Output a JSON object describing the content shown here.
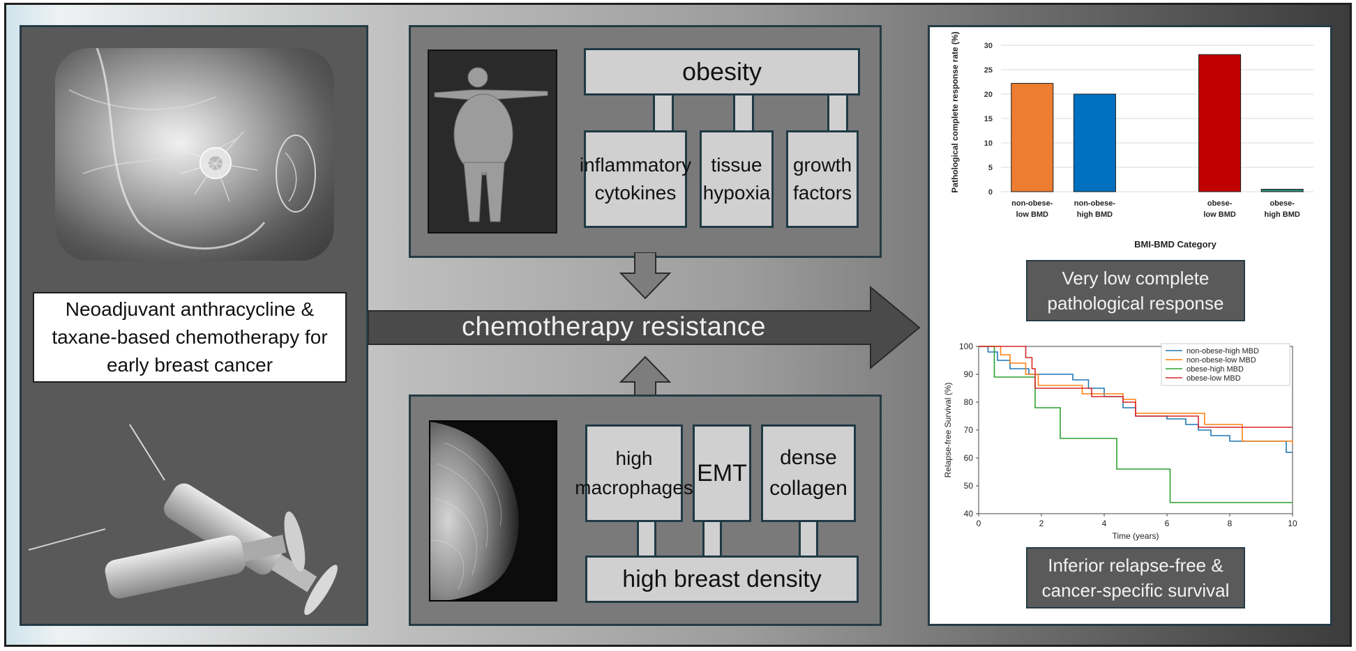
{
  "left_caption": "Neoadjuvant anthracycline & taxane-based chemotherapy for early breast cancer",
  "center_label": "chemotherapy resistance",
  "obesity": {
    "title": "obesity",
    "factors": [
      "inflammatory cytokines",
      "tissue hypoxia",
      "growth factors"
    ]
  },
  "density": {
    "title": "high breast density",
    "factors": [
      "high macrophages",
      "EMT",
      "dense collagen"
    ]
  },
  "result1": "Very low complete pathological response",
  "result2": "Inferior relapse-free & cancer-specific survival",
  "colors": {
    "orange": "#ED7D31",
    "blue": "#0070C0",
    "red": "#C00000",
    "teal": "#2E8B7A",
    "km_blue": "#1f77b4",
    "km_orange": "#ff7f0e",
    "km_green": "#2ca02c",
    "km_red": "#d62728"
  },
  "chart_data": [
    {
      "type": "bar",
      "categories": [
        "non-obese-\nlow BMD",
        "non-obese-\nhigh BMD",
        "obese-\nlow BMD",
        "obese-\nhigh BMD"
      ],
      "values": [
        22.2,
        20.0,
        28.1,
        0.5
      ],
      "colors": [
        "#ED7D31",
        "#0070C0",
        "#C00000",
        "#2E8B7A"
      ],
      "xlabel": "BMI-BMD Category",
      "ylabel": "Pathological complete response rate (%)",
      "ylim": [
        0,
        30
      ],
      "yticks": [
        0,
        5,
        10,
        15,
        20,
        25,
        30
      ],
      "grid": true
    },
    {
      "type": "line",
      "xlabel": "Time (years)",
      "ylabel": "Relapse-free Survival (%)",
      "xlim": [
        0,
        10
      ],
      "ylim": [
        40,
        100
      ],
      "xticks": [
        0,
        2,
        4,
        6,
        8,
        10
      ],
      "yticks": [
        40,
        50,
        60,
        70,
        80,
        90,
        100
      ],
      "legend_position": "top-right",
      "series": [
        {
          "name": "non-obese-high MBD",
          "color": "#1f77b4",
          "x": [
            0,
            0.3,
            0.6,
            1.0,
            1.6,
            2.2,
            3.0,
            3.5,
            4.0,
            4.6,
            5.0,
            6.0,
            6.6,
            7.0,
            7.4,
            8.0,
            9.0,
            9.8,
            10
          ],
          "y": [
            100,
            98,
            95,
            92,
            90,
            90,
            88,
            85,
            82,
            78,
            75,
            74,
            72,
            70,
            68,
            66,
            66,
            62,
            62
          ]
        },
        {
          "name": "non-obese-low MBD",
          "color": "#ff7f0e",
          "x": [
            0,
            0.7,
            1.0,
            1.5,
            1.9,
            2.6,
            3.3,
            4.6,
            5.0,
            6.2,
            7.2,
            8.4,
            9.8,
            10
          ],
          "y": [
            100,
            97,
            94,
            90,
            86,
            86,
            83,
            81,
            76,
            76,
            72,
            66,
            66,
            65
          ]
        },
        {
          "name": "obese-high MBD",
          "color": "#2ca02c",
          "x": [
            0,
            0.5,
            0.8,
            1.8,
            2.6,
            4.4,
            6.1,
            10
          ],
          "y": [
            100,
            89,
            89,
            78,
            67,
            56,
            44,
            44
          ]
        },
        {
          "name": "obese-low MBD",
          "color": "#d62728",
          "x": [
            0,
            0.8,
            1.5,
            1.7,
            1.8,
            3.0,
            3.6,
            4.6,
            5.0,
            6.0,
            7.0,
            10
          ],
          "y": [
            100,
            100,
            96,
            92,
            85,
            85,
            82,
            80,
            75,
            75,
            71,
            71
          ]
        }
      ]
    }
  ]
}
